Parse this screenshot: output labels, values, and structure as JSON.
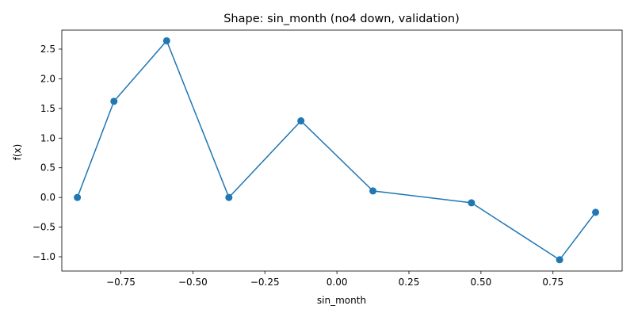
{
  "chart_data": {
    "type": "line",
    "title": "Shape: sin_month (no4 down, validation)",
    "xlabel": "sin_month",
    "ylabel": "f(x)",
    "xlim": [
      -0.955,
      0.99
    ],
    "ylim": [
      -1.24,
      2.82
    ],
    "grid": false,
    "legend": "none",
    "x_ticks": [
      -0.75,
      -0.5,
      -0.25,
      0.0,
      0.25,
      0.5,
      0.75
    ],
    "x_tick_labels": [
      "−0.75",
      "−0.50",
      "−0.25",
      "0.00",
      "0.25",
      "0.50",
      "0.75"
    ],
    "y_ticks": [
      -1.0,
      -0.5,
      0.0,
      0.5,
      1.0,
      1.5,
      2.0,
      2.5
    ],
    "y_tick_labels": [
      "−1.0",
      "−0.5",
      "0.0",
      "0.5",
      "1.0",
      "1.5",
      "2.0",
      "2.5"
    ],
    "series": [
      {
        "color": "#1f77b4",
        "marker": "circle",
        "x": [
          -0.901,
          -0.774,
          -0.591,
          -0.375,
          -0.125,
          0.125,
          0.467,
          0.773,
          0.898
        ],
        "y": [
          0.0,
          1.62,
          2.64,
          0.0,
          1.29,
          0.11,
          -0.09,
          -1.05,
          -0.25
        ]
      }
    ]
  }
}
